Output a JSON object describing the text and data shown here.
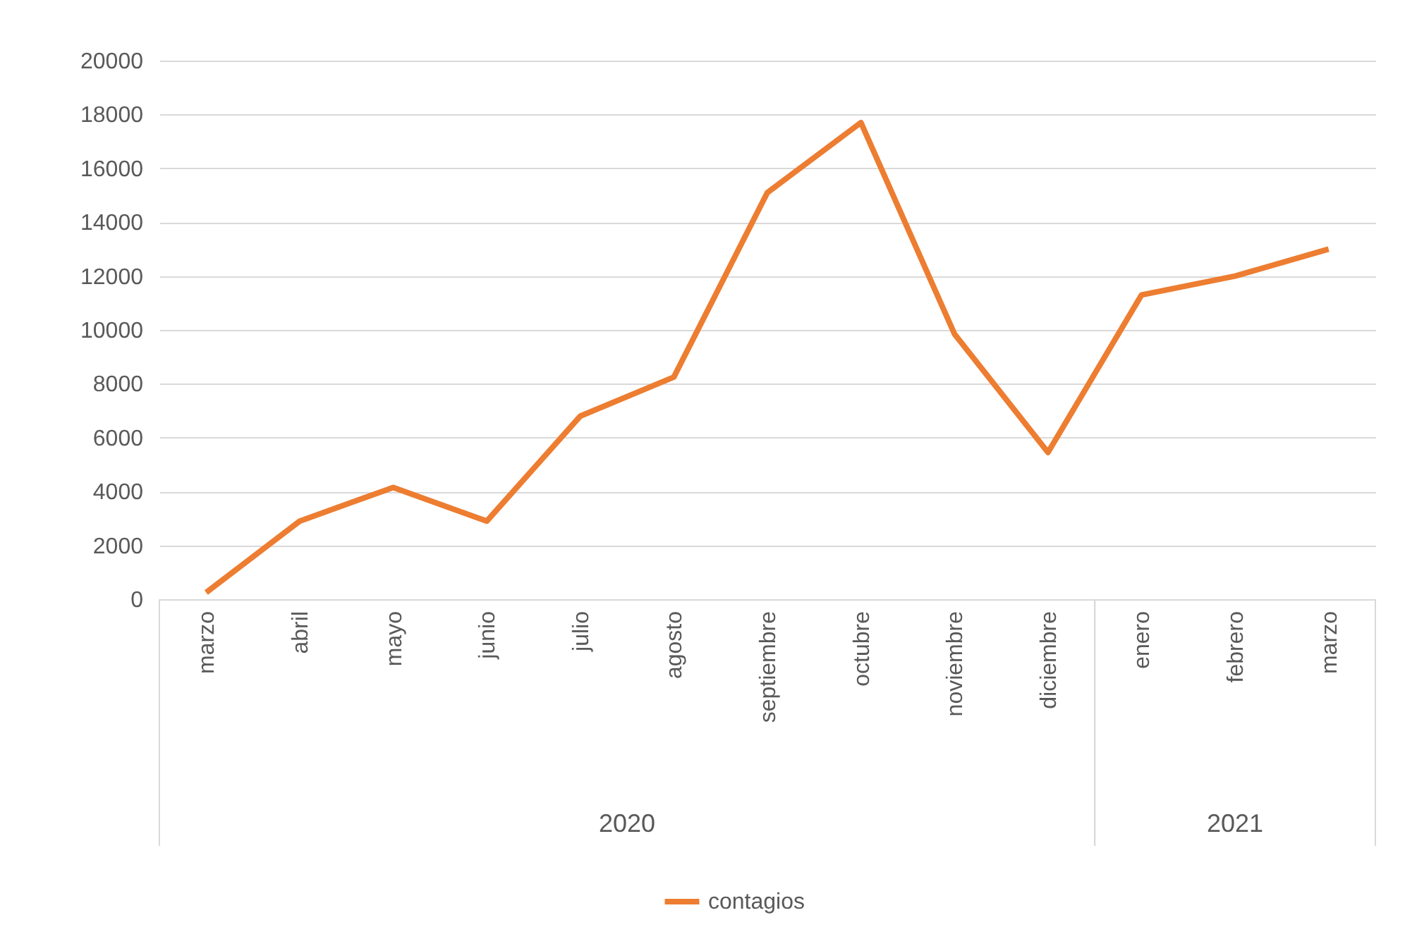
{
  "chart_data": {
    "type": "line",
    "categories": [
      "marzo",
      "abril",
      "mayo",
      "junio",
      "julio",
      "agosto",
      "septiembre",
      "octubre",
      "noviembre",
      "diciembre",
      "enero",
      "febrero",
      "marzo"
    ],
    "series": [
      {
        "name": "contagios",
        "color": "#ed7d31",
        "values": [
          250,
          2900,
          4150,
          2900,
          6800,
          8250,
          15100,
          17700,
          9850,
          5450,
          11300,
          12000,
          13000
        ]
      }
    ],
    "ylim": [
      0,
      20000
    ],
    "yticks": [
      0,
      2000,
      4000,
      6000,
      8000,
      10000,
      12000,
      14000,
      16000,
      18000,
      20000
    ],
    "annotations": [
      "2020",
      "2021"
    ],
    "grid": "y",
    "legend": "bottom",
    "marker": "none",
    "line_style": "solid"
  }
}
